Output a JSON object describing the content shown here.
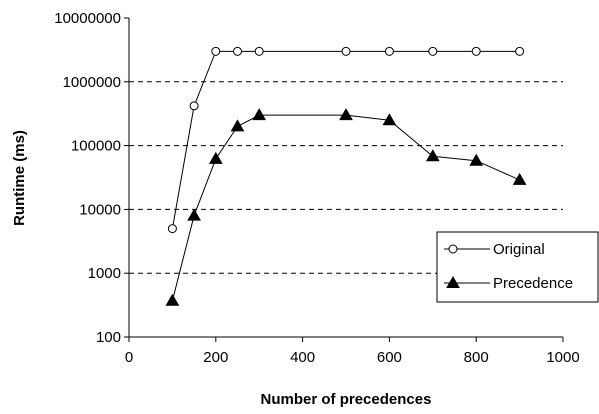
{
  "chart_data": {
    "type": "line",
    "title": "",
    "xlabel": "Number of precedences",
    "ylabel": "Runtime (ms)",
    "xlim": [
      0,
      1000
    ],
    "ylim": [
      100,
      10000000
    ],
    "y_scale": "log",
    "x_ticks": [
      "0",
      "200",
      "400",
      "600",
      "800",
      "1000"
    ],
    "y_ticks": [
      "100",
      "1000",
      "10000",
      "100000",
      "1000000",
      "10000000"
    ],
    "grid": "horizontal dashed",
    "legend_position": "right",
    "series": [
      {
        "name": "Original",
        "marker": "open-circle",
        "color": "#000000",
        "x": [
          100,
          150,
          200,
          250,
          300,
          500,
          600,
          700,
          800,
          900
        ],
        "y": [
          5000,
          420000,
          3000000,
          3000000,
          3000000,
          3000000,
          3000000,
          3000000,
          3000000,
          3000000
        ]
      },
      {
        "name": "Precedence",
        "marker": "filled-triangle",
        "color": "#000000",
        "x": [
          100,
          150,
          200,
          250,
          300,
          500,
          600,
          700,
          800,
          900
        ],
        "y": [
          370,
          8000,
          62000,
          200000,
          300000,
          300000,
          250000,
          68000,
          58000,
          29000
        ]
      }
    ]
  }
}
